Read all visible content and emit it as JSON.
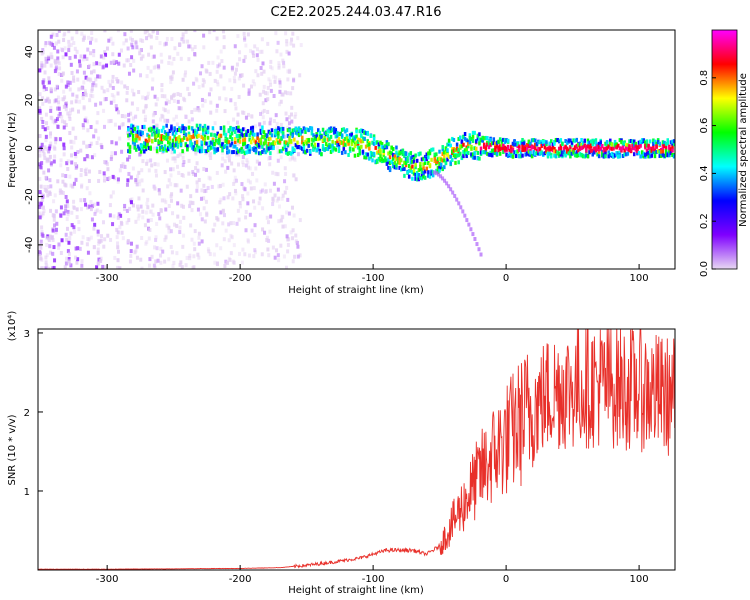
{
  "title": "C2E2.2025.244.03.47.R16",
  "chart_data": [
    {
      "type": "heatmap",
      "xlabel": "Height of straight line (km)",
      "ylabel": "Frequency (Hz)",
      "xlim": [
        -352,
        127
      ],
      "ylim": [
        -50,
        49
      ],
      "xticks": [
        -300,
        -200,
        -100,
        0,
        100
      ],
      "yticks": [
        -40,
        -20,
        0,
        20,
        40
      ],
      "colorbar": {
        "label": "Normalized spectral amplitude",
        "range": [
          0,
          1
        ],
        "ticks": [
          "0.0",
          "0.2",
          "0.4",
          "0.6",
          "0.8"
        ],
        "colormap": [
          "#e8d8f2",
          "#7f00ff",
          "#0000ff",
          "#00ffff",
          "#00ff00",
          "#ffff00",
          "#ff0000",
          "#ff00ff"
        ]
      },
      "ridge": {
        "x": [
          -285,
          -260,
          -230,
          -200,
          -175,
          -150,
          -125,
          -110,
          -100,
          -90,
          -80,
          -70,
          -60,
          -50,
          -40,
          -30,
          -20,
          -10,
          0,
          30,
          60,
          90,
          127
        ],
        "frequency": [
          4,
          4,
          4,
          3.5,
          3,
          3,
          3,
          2,
          0,
          -3,
          -6,
          -8,
          -7,
          -4,
          -1,
          1,
          1,
          0.5,
          0,
          0,
          0,
          0,
          0
        ]
      },
      "noise_region": {
        "x": [
          -352,
          -155
        ],
        "frequency": [
          -50,
          49
        ]
      },
      "tail": {
        "x": [
          -55,
          -20
        ],
        "frequency": [
          -10,
          -44
        ]
      }
    },
    {
      "type": "line",
      "xlabel": "Height of straight line (km)",
      "ylabel": "SNR (10 * v/v)",
      "y_multiplier": "(x10⁴)",
      "xlim": [
        -352,
        127
      ],
      "ylim": [
        0,
        3.05
      ],
      "xticks": [
        -300,
        -200,
        -100,
        0,
        100
      ],
      "yticks": [
        1,
        2,
        3
      ],
      "color": "#e8302a",
      "series": [
        {
          "x": [
            -352,
            -300,
            -250,
            -200,
            -170,
            -150,
            -130,
            -110,
            -100,
            -90,
            -80,
            -70,
            -60,
            -50,
            -40,
            -30,
            -20,
            -10,
            0,
            10,
            20,
            30,
            40,
            50,
            60,
            70,
            80,
            90,
            100,
            110,
            120,
            127
          ],
          "y": [
            0.01,
            0.01,
            0.015,
            0.02,
            0.03,
            0.06,
            0.1,
            0.15,
            0.2,
            0.25,
            0.25,
            0.25,
            0.2,
            0.3,
            0.6,
            0.9,
            1.2,
            1.45,
            1.65,
            1.85,
            2.05,
            2.2,
            2.3,
            2.3,
            2.35,
            2.35,
            2.35,
            2.3,
            2.3,
            2.25,
            2.2,
            2.2
          ]
        }
      ]
    }
  ]
}
